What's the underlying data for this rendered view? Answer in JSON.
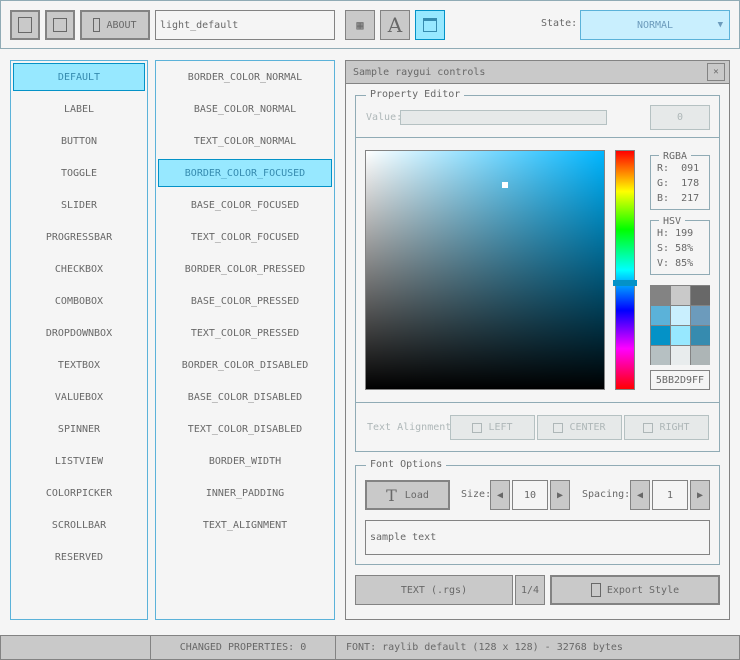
{
  "toolbar": {
    "about_label": "ABOUT",
    "style_name": "light_default",
    "state_label": "State:",
    "state_value": "NORMAL"
  },
  "controls_list": [
    "DEFAULT",
    "LABEL",
    "BUTTON",
    "TOGGLE",
    "SLIDER",
    "PROGRESSBAR",
    "CHECKBOX",
    "COMBOBOX",
    "DROPDOWNBOX",
    "TEXTBOX",
    "VALUEBOX",
    "SPINNER",
    "LISTVIEW",
    "COLORPICKER",
    "SCROLLBAR",
    "RESERVED"
  ],
  "controls_selected": 0,
  "props_list": [
    "BORDER_COLOR_NORMAL",
    "BASE_COLOR_NORMAL",
    "TEXT_COLOR_NORMAL",
    "BORDER_COLOR_FOCUSED",
    "BASE_COLOR_FOCUSED",
    "TEXT_COLOR_FOCUSED",
    "BORDER_COLOR_PRESSED",
    "BASE_COLOR_PRESSED",
    "TEXT_COLOR_PRESSED",
    "BORDER_COLOR_DISABLED",
    "BASE_COLOR_DISABLED",
    "TEXT_COLOR_DISABLED",
    "BORDER_WIDTH",
    "INNER_PADDING",
    "TEXT_ALIGNMENT"
  ],
  "props_selected": 3,
  "window": {
    "title": "Sample raygui controls",
    "close": "✕"
  },
  "property_editor": {
    "title": "Property Editor",
    "value_label": "Value:",
    "value": "0",
    "value_slider": 0
  },
  "color": {
    "hue_color": "#00b6ff",
    "selected_hex_color": "#5bb2d9",
    "hue_fraction": 0.553,
    "rgba_title": "RGBA",
    "r_label": "R:",
    "r": "091",
    "g_label": "G:",
    "g": "178",
    "b_label": "B:",
    "b": "217",
    "hsv_title": "HSV",
    "h_label": "H:",
    "h": "199",
    "s_label": "S:",
    "s": "58%",
    "v_label": "V:",
    "v": "85%",
    "hex": "5BB2D9FF",
    "palette": [
      "#838383",
      "#c9c9c9",
      "#686868",
      "#5bb2d9",
      "#c9effe",
      "#6c9bbc",
      "#0492c7",
      "#97e8ff",
      "#368baf",
      "#b6c0c2",
      "#e8eced",
      "#adb5b6"
    ]
  },
  "alignment": {
    "label": "Text Alignment:",
    "left": "LEFT",
    "center": "CENTER",
    "right": "RIGHT"
  },
  "font": {
    "title": "Font Options",
    "load": "Load",
    "size_label": "Size:",
    "size": "10",
    "spacing_label": "Spacing:",
    "spacing": "1",
    "sample": "sample text"
  },
  "bottom": {
    "text_btn": "TEXT (.rgs)",
    "page": "1/4",
    "export": "Export Style"
  },
  "status": {
    "left": "",
    "changed": "CHANGED PROPERTIES: 0",
    "font": "FONT: raylib default (128 x 128) - 32768 bytes"
  }
}
